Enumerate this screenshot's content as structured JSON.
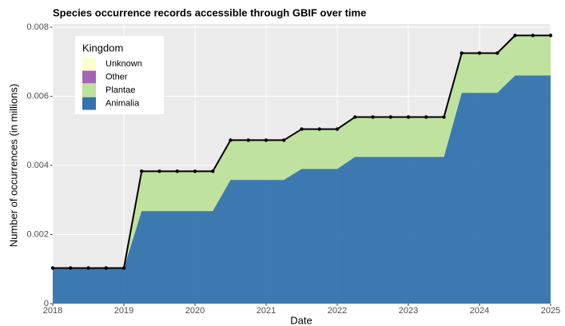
{
  "chart_data": {
    "type": "area",
    "title": "Species occurrence records accessible through GBIF over time",
    "x_label": "Date",
    "y_label": "Number of occurrences (in millions)",
    "legend_title": "Kingdom",
    "legend_position": "top-left",
    "stacked": true,
    "grid": true,
    "x": [
      2018,
      2018.25,
      2018.5,
      2018.75,
      2019,
      2019.25,
      2019.5,
      2019.75,
      2020,
      2020.25,
      2020.5,
      2020.75,
      2021,
      2021.25,
      2021.5,
      2021.75,
      2022,
      2022.25,
      2022.5,
      2022.75,
      2023,
      2023.25,
      2023.5,
      2023.75,
      2024,
      2024.25,
      2024.5,
      2024.75,
      2025
    ],
    "series": [
      {
        "name": "Unknown",
        "color": "#ffffcc",
        "values": [
          0,
          0,
          0,
          0,
          0,
          0,
          0,
          0,
          0,
          0,
          0,
          0,
          0,
          0,
          0,
          0,
          0,
          0,
          0,
          0,
          0,
          0,
          0,
          0,
          0,
          0,
          0,
          0,
          0
        ]
      },
      {
        "name": "Other",
        "color": "#a365b6",
        "values": [
          0,
          0,
          0,
          0,
          0,
          0,
          0,
          0,
          0,
          0,
          0,
          0,
          0,
          0,
          0,
          0,
          0,
          0,
          0,
          0,
          0,
          0,
          0,
          0,
          0,
          0,
          0,
          0,
          0
        ]
      },
      {
        "name": "Plantae",
        "color": "#bde29b",
        "values": [
          0,
          0,
          0,
          0,
          0,
          0.00115,
          0.00115,
          0.00115,
          0.00115,
          0.00115,
          0.00115,
          0.00115,
          0.00115,
          0.00115,
          0.00115,
          0.00115,
          0.00115,
          0.00115,
          0.00115,
          0.00115,
          0.00115,
          0.00115,
          0.00115,
          0.00115,
          0.00115,
          0.00115,
          0.00116,
          0.00116,
          0.00116
        ]
      },
      {
        "name": "Animalia",
        "color": "#3473ae",
        "values": [
          0.00103,
          0.00103,
          0.00103,
          0.00103,
          0.00103,
          0.00268,
          0.00268,
          0.00268,
          0.00268,
          0.00268,
          0.00358,
          0.00358,
          0.00358,
          0.00358,
          0.0039,
          0.0039,
          0.0039,
          0.00425,
          0.00425,
          0.00425,
          0.00425,
          0.00425,
          0.00425,
          0.0061,
          0.0061,
          0.0061,
          0.0066,
          0.0066,
          0.0066
        ]
      }
    ],
    "xlim": [
      2018,
      2025
    ],
    "xticks": [
      2018,
      2019,
      2020,
      2021,
      2022,
      2023,
      2024,
      2025
    ],
    "ylim": [
      0,
      0.008
    ],
    "yticks": [
      0,
      0.002,
      0.004,
      0.006,
      0.008
    ]
  }
}
